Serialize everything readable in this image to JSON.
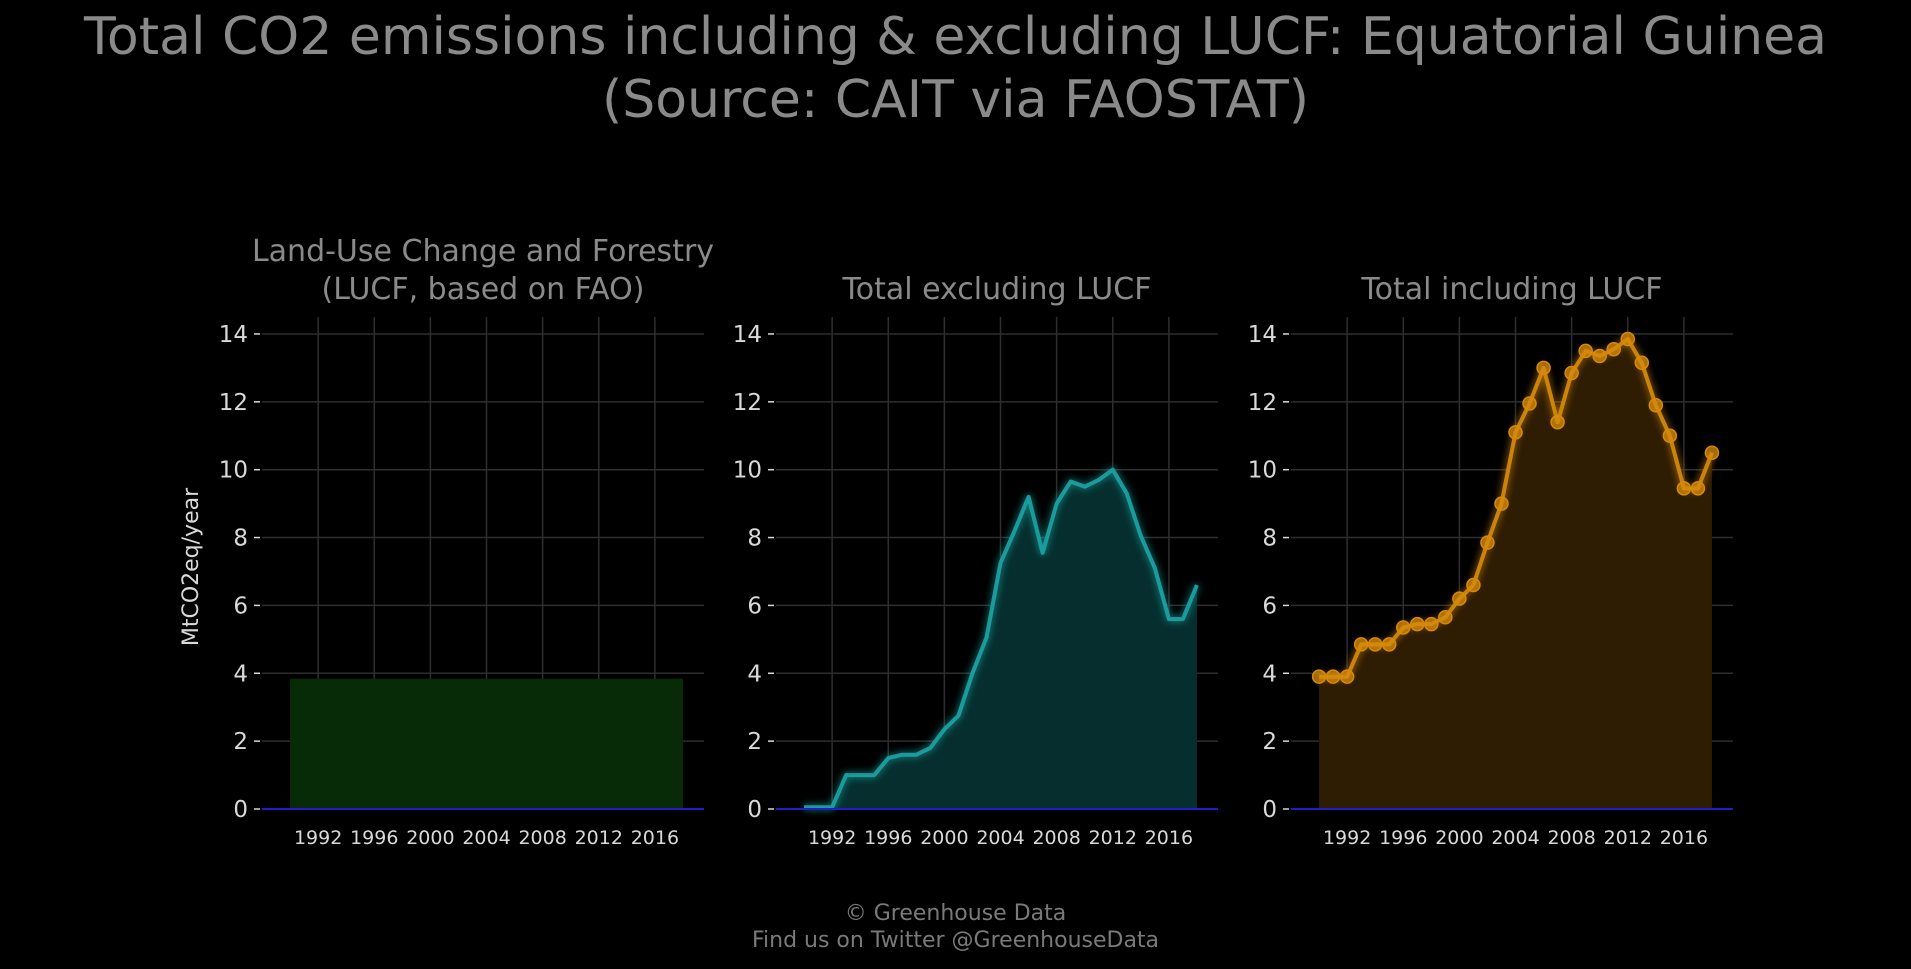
{
  "title": {
    "line1": "Total CO2 emissions including & excluding LUCF: Equatorial Guinea",
    "line2": "(Source: CAIT via FAOSTAT)"
  },
  "footer": {
    "line1": "© Greenhouse Data",
    "line2": "Find us on Twitter @GreenhouseData"
  },
  "ylabel": "MtCO2eq/year",
  "colors": {
    "background": "#000000",
    "grid": "#2e2e2e",
    "tick_text": "#d9d9d9",
    "title_text": "#8a8a8a",
    "zero_line": "#1e1ecc"
  },
  "chart_data": [
    {
      "type": "area",
      "panel": "lucf",
      "title_lines": [
        "Land-Use Change and Forestry",
        "(LUCF, based on FAO)"
      ],
      "color": "#1f7a1f",
      "fill": "#062b06",
      "show_points": false,
      "x": [
        1990,
        1991,
        1992,
        1993,
        1994,
        1995,
        1996,
        1997,
        1998,
        1999,
        2000,
        2001,
        2002,
        2003,
        2004,
        2005,
        2006,
        2007,
        2008,
        2009,
        2010,
        2011,
        2012,
        2013,
        2014,
        2015,
        2016,
        2017,
        2018
      ],
      "y": [
        3.84,
        3.84,
        3.84,
        3.84,
        3.84,
        3.84,
        3.84,
        3.84,
        3.84,
        3.84,
        3.84,
        3.84,
        3.84,
        3.84,
        3.84,
        3.84,
        3.84,
        3.84,
        3.84,
        3.84,
        3.84,
        3.84,
        3.84,
        3.84,
        3.84,
        3.84,
        3.84,
        3.84,
        3.84
      ],
      "xticks": [
        "1992",
        "1996",
        "2000",
        "2004",
        "2008",
        "2012",
        "2016"
      ],
      "yticks": [
        "0",
        "2",
        "4",
        "6",
        "8",
        "10",
        "12",
        "14"
      ],
      "xlim": [
        1988,
        2019.5
      ],
      "ylim": [
        0,
        14.5
      ],
      "grid": true
    },
    {
      "type": "area",
      "panel": "excl",
      "title_lines": [
        "Total excluding LUCF"
      ],
      "color": "#1fa3a3",
      "fill": "#062e2e",
      "show_points": false,
      "x": [
        1990,
        1991,
        1992,
        1993,
        1994,
        1995,
        1996,
        1997,
        1998,
        1999,
        2000,
        2001,
        2002,
        2003,
        2004,
        2005,
        2006,
        2007,
        2008,
        2009,
        2010,
        2011,
        2012,
        2013,
        2014,
        2015,
        2016,
        2017,
        2018
      ],
      "y": [
        0.05,
        0.05,
        0.05,
        1.0,
        1.0,
        1.0,
        1.5,
        1.6,
        1.6,
        1.8,
        2.35,
        2.75,
        4.0,
        5.05,
        7.25,
        8.2,
        9.2,
        7.55,
        9.0,
        9.65,
        9.5,
        9.7,
        10.0,
        9.3,
        8.05,
        7.1,
        5.6,
        5.6,
        6.6
      ],
      "xticks": [
        "1992",
        "1996",
        "2000",
        "2004",
        "2008",
        "2012",
        "2016"
      ],
      "yticks": [
        "0",
        "2",
        "4",
        "6",
        "8",
        "10",
        "12",
        "14"
      ],
      "xlim": [
        1988,
        2019.5
      ],
      "ylim": [
        0,
        14.5
      ],
      "grid": true
    },
    {
      "type": "area",
      "panel": "incl",
      "title_lines": [
        "Total including LUCF"
      ],
      "color": "#d68a0c",
      "fill": "#2e1c03",
      "show_points": true,
      "x": [
        1990,
        1991,
        1992,
        1993,
        1994,
        1995,
        1996,
        1997,
        1998,
        1999,
        2000,
        2001,
        2002,
        2003,
        2004,
        2005,
        2006,
        2007,
        2008,
        2009,
        2010,
        2011,
        2012,
        2013,
        2014,
        2015,
        2016,
        2017,
        2018
      ],
      "y": [
        3.9,
        3.9,
        3.9,
        4.85,
        4.85,
        4.85,
        5.35,
        5.45,
        5.45,
        5.65,
        6.2,
        6.6,
        7.85,
        9.0,
        11.1,
        11.95,
        13.0,
        11.4,
        12.85,
        13.5,
        13.35,
        13.55,
        13.85,
        13.15,
        11.9,
        11.0,
        9.45,
        9.45,
        10.5
      ],
      "xticks": [
        "1992",
        "1996",
        "2000",
        "2004",
        "2008",
        "2012",
        "2016"
      ],
      "yticks": [
        "0",
        "2",
        "4",
        "6",
        "8",
        "10",
        "12",
        "14"
      ],
      "xlim": [
        1988,
        2019.5
      ],
      "ylim": [
        0,
        14.5
      ],
      "grid": true
    }
  ]
}
